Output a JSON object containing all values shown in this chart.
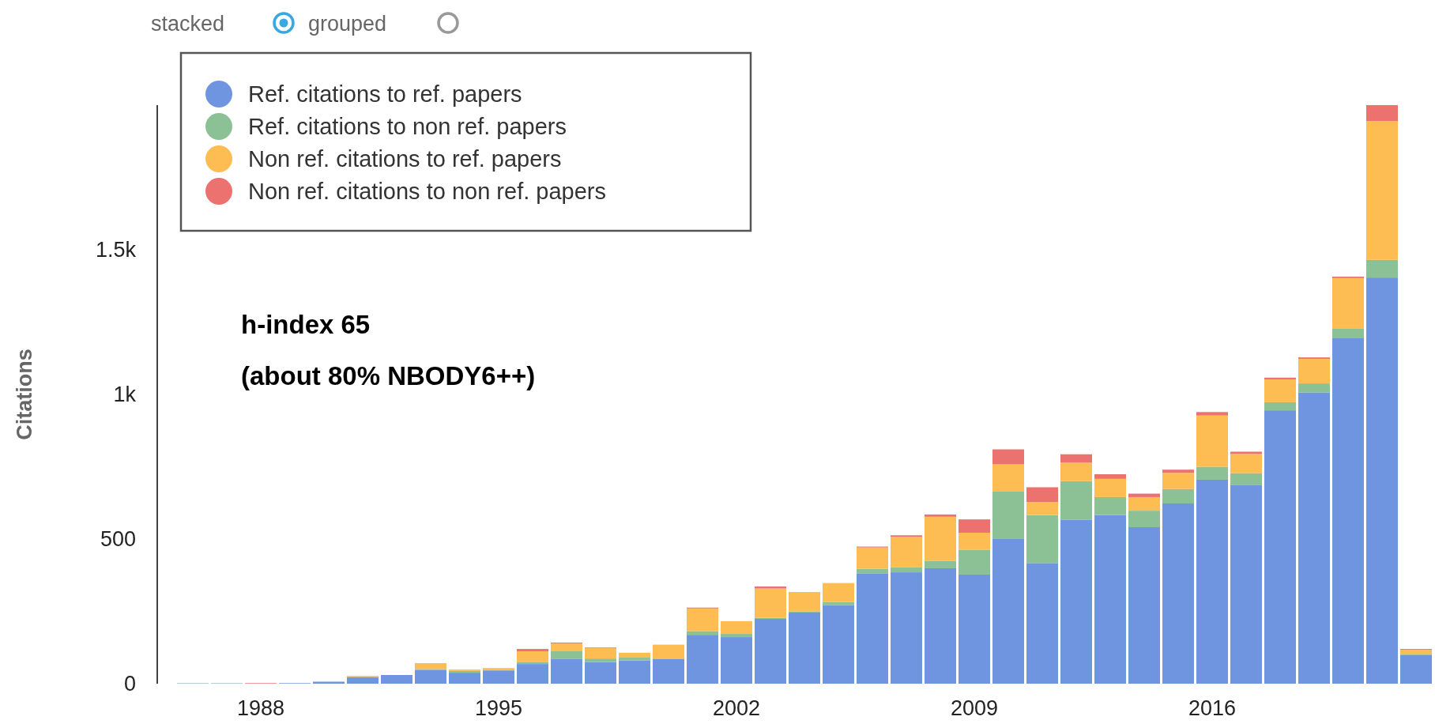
{
  "chart_data": {
    "type": "bar",
    "stacked": true,
    "ylabel": "Citations",
    "annotations": [
      "stacked",
      "grouped",
      "h-index 65",
      "(about 80% NBODY6++)"
    ],
    "categories": [
      null,
      null,
      "1988",
      null,
      null,
      null,
      null,
      null,
      null,
      "1995",
      null,
      null,
      null,
      null,
      null,
      null,
      "2002",
      null,
      null,
      null,
      null,
      null,
      null,
      "2009",
      null,
      null,
      null,
      null,
      null,
      null,
      "2016",
      null,
      null,
      null,
      null,
      null,
      null
    ],
    "series": [
      {
        "name": "Ref. citations to ref. papers",
        "color": "#6f95e0",
        "values": [
          1,
          1,
          null,
          2,
          7,
          23,
          30,
          48,
          38,
          46,
          68,
          85,
          75,
          80,
          85,
          169,
          161,
          224,
          246,
          271,
          380,
          385,
          399,
          377,
          500,
          417,
          566,
          583,
          541,
          623,
          705,
          686,
          945,
          1007,
          1194,
          1404,
          100
        ]
      },
      {
        "name": "Ref. citations to non ref. papers",
        "color": "#8cc196",
        "values": [
          1,
          1,
          0,
          0,
          0,
          0,
          0,
          3,
          6,
          null,
          6,
          27,
          12,
          10,
          2,
          13,
          11,
          4,
          3,
          11,
          17,
          17,
          26,
          85,
          164,
          166,
          134,
          62,
          57,
          50,
          45,
          42,
          28,
          31,
          33,
          61,
          3
        ]
      },
      {
        "name": "Non ref. citations to ref. papers",
        "color": "#fdbd52",
        "values": [
          0,
          0,
          0,
          0,
          0,
          4,
          0,
          20,
          5,
          8,
          38,
          27,
          36,
          17,
          48,
          78,
          44,
          101,
          68,
          66,
          74,
          106,
          152,
          60,
          94,
          45,
          64,
          63,
          47,
          56,
          177,
          66,
          79,
          85,
          175,
          480,
          14
        ]
      },
      {
        "name": "Non ref. citations to non ref. papers",
        "color": "#ec7270",
        "values": [
          0,
          0,
          2,
          0,
          0,
          0,
          0,
          0,
          0,
          0,
          8,
          3,
          2,
          0,
          0,
          3,
          0,
          7,
          0,
          0,
          3,
          5,
          8,
          46,
          52,
          51,
          29,
          16,
          12,
          11,
          12,
          8,
          6,
          5,
          5,
          55,
          3
        ]
      }
    ],
    "ylim": [
      0,
      2000
    ],
    "yticks": [
      0,
      500,
      {
        "value": 1000,
        "label": "1k"
      },
      {
        "value": 1500,
        "label": "1.5k"
      }
    ],
    "grid": false,
    "legend": "top left"
  }
}
